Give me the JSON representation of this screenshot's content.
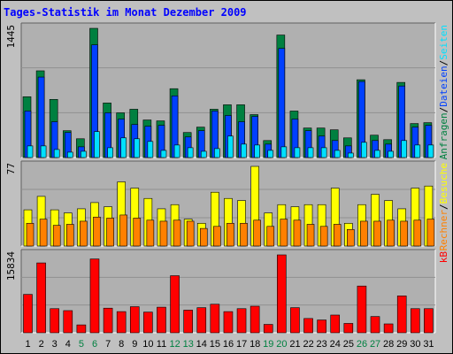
{
  "title": "Tages-Statistik im Monat Dezember 2009",
  "colors": {
    "background": "#c0c0c0",
    "plot_background": "#b0b0b0",
    "title": "#0000ff",
    "anfragen": "#008040",
    "dateien": "#0040ff",
    "seiten": "#00e0ff",
    "besuche": "#ffff00",
    "rechner": "#ff8000",
    "kb": "#ff0000",
    "weekday_label": "#000000",
    "weekend_label": "#008040"
  },
  "chart_data": [
    {
      "type": "bar",
      "panel": "top",
      "ymax_label": "1445",
      "right_labels": [
        {
          "text": "Anfragen",
          "color": "#008040"
        },
        {
          "text": "/",
          "color": "#000000"
        },
        {
          "text": "Dateien",
          "color": "#0040ff"
        },
        {
          "text": "/",
          "color": "#000000"
        },
        {
          "text": "Seiten",
          "color": "#00e0ff"
        }
      ],
      "categories": [
        "1",
        "2",
        "3",
        "4",
        "5",
        "6",
        "7",
        "8",
        "9",
        "10",
        "11",
        "12",
        "13",
        "14",
        "15",
        "16",
        "17",
        "18",
        "19",
        "20",
        "21",
        "22",
        "23",
        "24",
        "25",
        "26",
        "27",
        "28",
        "29",
        "30",
        "31"
      ],
      "ymax": 1445,
      "series": [
        {
          "name": "Anfragen",
          "color": "#008040",
          "values": [
            680,
            970,
            650,
            300,
            210,
            1445,
            610,
            500,
            540,
            420,
            410,
            770,
            280,
            340,
            540,
            590,
            590,
            480,
            190,
            1370,
            520,
            330,
            330,
            310,
            220,
            870,
            250,
            200,
            840,
            380,
            390
          ]
        },
        {
          "name": "Dateien",
          "color": "#0040ff",
          "values": [
            520,
            900,
            400,
            280,
            120,
            1260,
            500,
            430,
            370,
            350,
            360,
            690,
            230,
            300,
            520,
            470,
            400,
            460,
            150,
            1220,
            430,
            300,
            240,
            190,
            130,
            850,
            190,
            150,
            800,
            340,
            360
          ]
        },
        {
          "name": "Seiten",
          "color": "#00e0ff",
          "values": [
            130,
            130,
            90,
            60,
            70,
            290,
            110,
            220,
            210,
            180,
            80,
            140,
            110,
            70,
            100,
            240,
            150,
            140,
            80,
            120,
            110,
            110,
            110,
            80,
            50,
            170,
            80,
            70,
            190,
            140,
            140
          ]
        }
      ]
    },
    {
      "type": "bar",
      "panel": "middle",
      "ymax_label": "77",
      "right_labels": [
        {
          "text": "Rechner",
          "color": "#ff8000"
        },
        {
          "text": "/",
          "color": "#000000"
        },
        {
          "text": "Besuche",
          "color": "#ffff00"
        }
      ],
      "categories": [
        "1",
        "2",
        "3",
        "4",
        "5",
        "6",
        "7",
        "8",
        "9",
        "10",
        "11",
        "12",
        "13",
        "14",
        "15",
        "16",
        "17",
        "18",
        "19",
        "20",
        "21",
        "22",
        "23",
        "24",
        "25",
        "26",
        "27",
        "28",
        "29",
        "30",
        "31"
      ],
      "ymax": 77,
      "series": [
        {
          "name": "Besuche",
          "color": "#ffff00",
          "values": [
            35,
            48,
            35,
            32,
            36,
            42,
            38,
            62,
            56,
            46,
            36,
            40,
            26,
            22,
            52,
            46,
            44,
            77,
            32,
            40,
            38,
            40,
            40,
            56,
            22,
            40,
            50,
            44,
            36,
            56,
            58
          ]
        },
        {
          "name": "Rechner",
          "color": "#ff8000",
          "values": [
            22,
            26,
            20,
            21,
            24,
            28,
            27,
            30,
            27,
            25,
            24,
            25,
            24,
            17,
            19,
            22,
            22,
            25,
            19,
            26,
            25,
            21,
            19,
            21,
            16,
            24,
            24,
            25,
            24,
            25,
            26
          ]
        }
      ]
    },
    {
      "type": "bar",
      "panel": "bottom",
      "ymax_label": "15834",
      "right_labels": [
        {
          "text": "kB",
          "color": "#ff0000"
        }
      ],
      "categories": [
        "1",
        "2",
        "3",
        "4",
        "5",
        "6",
        "7",
        "8",
        "9",
        "10",
        "11",
        "12",
        "13",
        "14",
        "15",
        "16",
        "17",
        "18",
        "19",
        "20",
        "21",
        "22",
        "23",
        "24",
        "25",
        "26",
        "27",
        "28",
        "29",
        "30",
        "31"
      ],
      "ymax": 15834,
      "series": [
        {
          "name": "kB",
          "color": "#ff0000",
          "values": [
            7800,
            14200,
            4900,
            4500,
            1600,
            15000,
            5000,
            4300,
            5300,
            4200,
            5200,
            11600,
            4600,
            5100,
            5800,
            4300,
            4900,
            5400,
            1700,
            15834,
            5100,
            2900,
            2600,
            3600,
            1900,
            9500,
            3300,
            1800,
            7500,
            4900,
            4900
          ]
        }
      ]
    }
  ],
  "days": [
    {
      "label": "1",
      "weekend": false
    },
    {
      "label": "2",
      "weekend": false
    },
    {
      "label": "3",
      "weekend": false
    },
    {
      "label": "4",
      "weekend": false
    },
    {
      "label": "5",
      "weekend": true
    },
    {
      "label": "6",
      "weekend": true
    },
    {
      "label": "7",
      "weekend": false
    },
    {
      "label": "8",
      "weekend": false
    },
    {
      "label": "9",
      "weekend": false
    },
    {
      "label": "10",
      "weekend": false
    },
    {
      "label": "11",
      "weekend": false
    },
    {
      "label": "12",
      "weekend": true
    },
    {
      "label": "13",
      "weekend": true
    },
    {
      "label": "14",
      "weekend": false
    },
    {
      "label": "15",
      "weekend": false
    },
    {
      "label": "16",
      "weekend": false
    },
    {
      "label": "17",
      "weekend": false
    },
    {
      "label": "18",
      "weekend": false
    },
    {
      "label": "19",
      "weekend": true
    },
    {
      "label": "20",
      "weekend": true
    },
    {
      "label": "21",
      "weekend": false
    },
    {
      "label": "22",
      "weekend": false
    },
    {
      "label": "23",
      "weekend": false
    },
    {
      "label": "24",
      "weekend": false
    },
    {
      "label": "25",
      "weekend": false
    },
    {
      "label": "26",
      "weekend": true
    },
    {
      "label": "27",
      "weekend": true
    },
    {
      "label": "28",
      "weekend": false
    },
    {
      "label": "29",
      "weekend": false
    },
    {
      "label": "30",
      "weekend": false
    },
    {
      "label": "31",
      "weekend": false
    }
  ]
}
